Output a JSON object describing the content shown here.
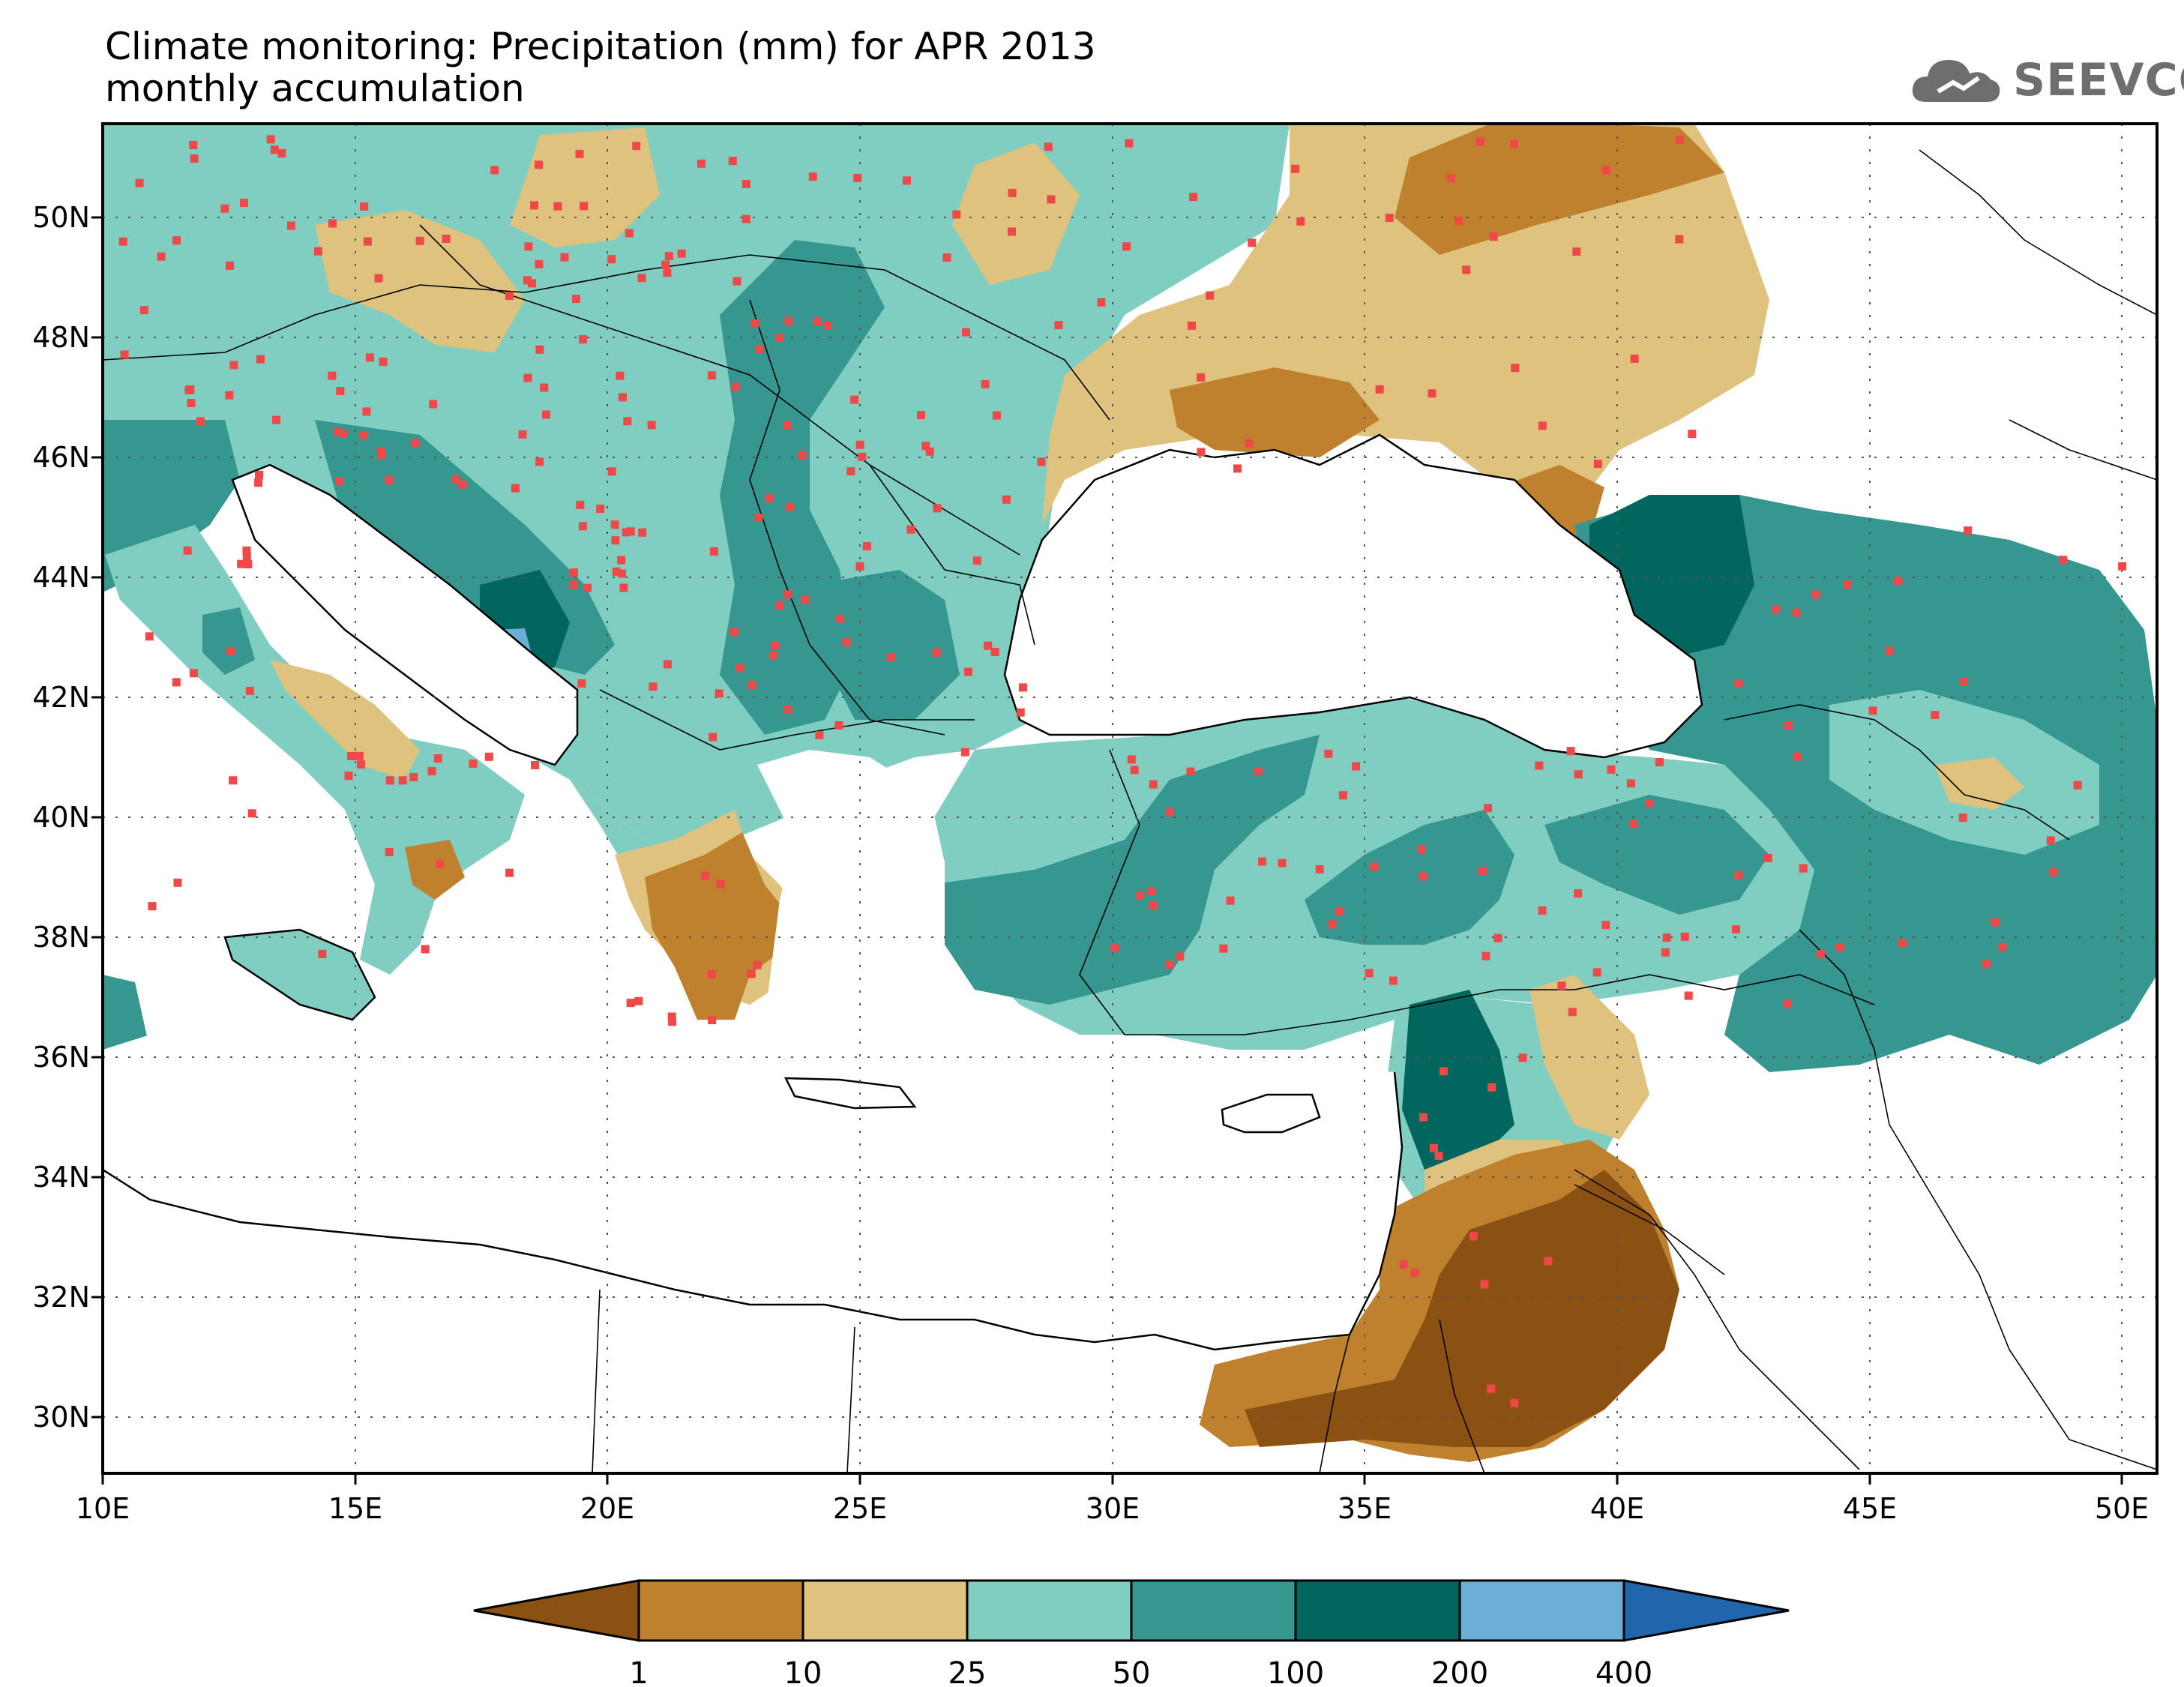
{
  "header": {
    "title_line1": "Climate monitoring: Precipitation (mm) for APR 2013",
    "title_line2": "monthly accumulation"
  },
  "logo": {
    "text": "SEEVCCC",
    "icon": "cloud-icon"
  },
  "map": {
    "lon_ticks": [
      "10E",
      "15E",
      "20E",
      "25E",
      "30E",
      "35E",
      "40E",
      "45E",
      "50E"
    ],
    "lat_ticks": [
      "50N",
      "48N",
      "46N",
      "44N",
      "42N",
      "40N",
      "38N",
      "36N",
      "34N",
      "32N",
      "30N"
    ],
    "station_marker_color": "#f04848",
    "ocean_color": "#ffffff"
  },
  "colorbar": {
    "levels": [
      "1",
      "10",
      "25",
      "50",
      "100",
      "200",
      "400"
    ],
    "colors": [
      "#8b5112",
      "#bf812d",
      "#dfc27d",
      "#80cdc1",
      "#35978f",
      "#01665e",
      "#6baed6",
      "#2166ac"
    ]
  }
}
